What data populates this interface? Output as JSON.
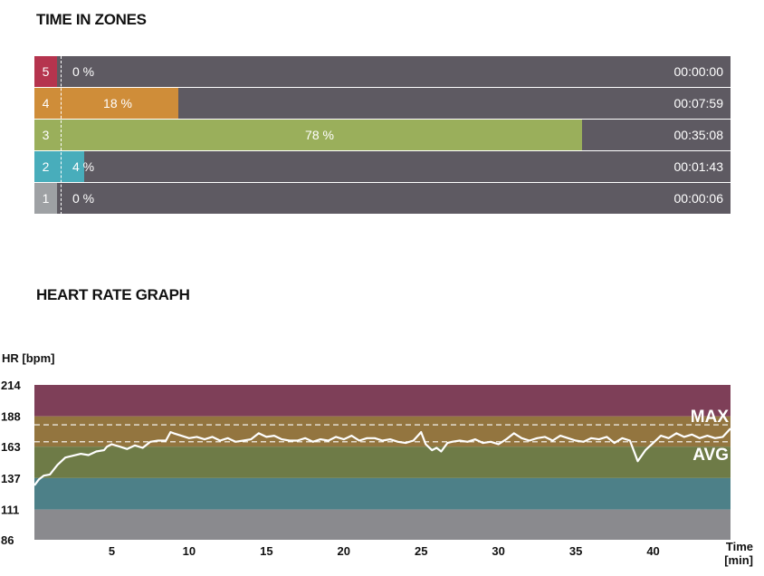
{
  "zones_section": {
    "title": "TIME IN ZONES",
    "zones": [
      {
        "zone": "5",
        "percent_label": "0 %",
        "percent": 0,
        "time": "00:00:00",
        "color": "#b5344e"
      },
      {
        "zone": "4",
        "percent_label": "18 %",
        "percent": 18,
        "time": "00:07:59",
        "color": "#cf8d39"
      },
      {
        "zone": "3",
        "percent_label": "78 %",
        "percent": 78,
        "time": "00:35:08",
        "color": "#9aaf5b"
      },
      {
        "zone": "2",
        "percent_label": "4 %",
        "percent": 4,
        "time": "00:01:43",
        "color": "#48adbb"
      },
      {
        "zone": "1",
        "percent_label": "0 %",
        "percent": 0,
        "time": "00:00:06",
        "color": "#9ea1a4"
      }
    ]
  },
  "hr_section": {
    "title": "HEART RATE GRAPH"
  },
  "chart_data": {
    "type": "line",
    "ylabel": "HR [bpm]",
    "xlabel": "Time [min]",
    "xlim": [
      0,
      45
    ],
    "ylim": [
      86,
      214
    ],
    "yticks": [
      214,
      188,
      163,
      137,
      111,
      86
    ],
    "xticks": [
      5,
      10,
      15,
      20,
      25,
      30,
      35,
      40
    ],
    "zone_bands": [
      {
        "from": 188,
        "to": 214,
        "color": "#7e3f58"
      },
      {
        "from": 163,
        "to": 188,
        "color": "#93753f"
      },
      {
        "from": 137,
        "to": 163,
        "color": "#6e7b47"
      },
      {
        "from": 111,
        "to": 137,
        "color": "#4d8088"
      },
      {
        "from": 86,
        "to": 111,
        "color": "#8a8a8e"
      }
    ],
    "reference_lines": [
      {
        "label": "MAX",
        "value": 181
      },
      {
        "label": "AVG",
        "value": 167
      }
    ],
    "series": [
      {
        "values": [
          [
            0,
            131
          ],
          [
            0.3,
            136
          ],
          [
            0.6,
            139
          ],
          [
            1,
            140
          ],
          [
            1.5,
            148
          ],
          [
            2,
            154
          ],
          [
            3,
            157
          ],
          [
            3.5,
            156
          ],
          [
            4,
            159
          ],
          [
            4.5,
            160
          ],
          [
            4.7,
            163
          ],
          [
            5,
            165
          ],
          [
            5.5,
            163
          ],
          [
            6,
            161
          ],
          [
            6.5,
            164
          ],
          [
            7,
            162
          ],
          [
            7.5,
            167
          ],
          [
            8,
            168
          ],
          [
            8.5,
            168
          ],
          [
            8.8,
            175
          ],
          [
            9,
            174
          ],
          [
            9.5,
            172
          ],
          [
            10,
            170
          ],
          [
            10.5,
            171
          ],
          [
            11,
            169
          ],
          [
            11.5,
            171
          ],
          [
            12,
            168
          ],
          [
            12.5,
            170
          ],
          [
            13,
            167
          ],
          [
            13.5,
            168
          ],
          [
            14,
            169
          ],
          [
            14.5,
            174
          ],
          [
            15,
            171
          ],
          [
            15.5,
            172
          ],
          [
            16,
            169
          ],
          [
            16.5,
            168
          ],
          [
            17,
            168
          ],
          [
            17.5,
            170
          ],
          [
            18,
            167
          ],
          [
            18.5,
            169
          ],
          [
            19,
            168
          ],
          [
            19.5,
            171
          ],
          [
            20,
            169
          ],
          [
            20.5,
            172
          ],
          [
            21,
            168
          ],
          [
            21.5,
            170
          ],
          [
            22,
            170
          ],
          [
            22.5,
            168
          ],
          [
            23,
            169
          ],
          [
            23.5,
            167
          ],
          [
            24,
            166
          ],
          [
            24.5,
            168
          ],
          [
            25,
            175
          ],
          [
            25.3,
            165
          ],
          [
            25.7,
            160
          ],
          [
            26,
            162
          ],
          [
            26.3,
            159
          ],
          [
            26.7,
            166
          ],
          [
            27,
            167
          ],
          [
            27.5,
            168
          ],
          [
            28,
            167
          ],
          [
            28.5,
            169
          ],
          [
            29,
            166
          ],
          [
            29.5,
            167
          ],
          [
            30,
            165
          ],
          [
            30.5,
            169
          ],
          [
            31,
            174
          ],
          [
            31.5,
            170
          ],
          [
            32,
            168
          ],
          [
            32.5,
            170
          ],
          [
            33,
            171
          ],
          [
            33.5,
            168
          ],
          [
            34,
            172
          ],
          [
            34.5,
            170
          ],
          [
            35,
            168
          ],
          [
            35.5,
            167
          ],
          [
            36,
            170
          ],
          [
            36.5,
            169
          ],
          [
            37,
            171
          ],
          [
            37.5,
            166
          ],
          [
            38,
            170
          ],
          [
            38.5,
            168
          ],
          [
            39,
            151
          ],
          [
            39.5,
            160
          ],
          [
            40,
            166
          ],
          [
            40.5,
            172
          ],
          [
            41,
            170
          ],
          [
            41.5,
            174
          ],
          [
            42,
            171
          ],
          [
            42.5,
            173
          ],
          [
            43,
            170
          ],
          [
            43.5,
            172
          ],
          [
            44,
            170
          ],
          [
            44.5,
            171
          ],
          [
            45,
            178
          ]
        ]
      }
    ]
  }
}
